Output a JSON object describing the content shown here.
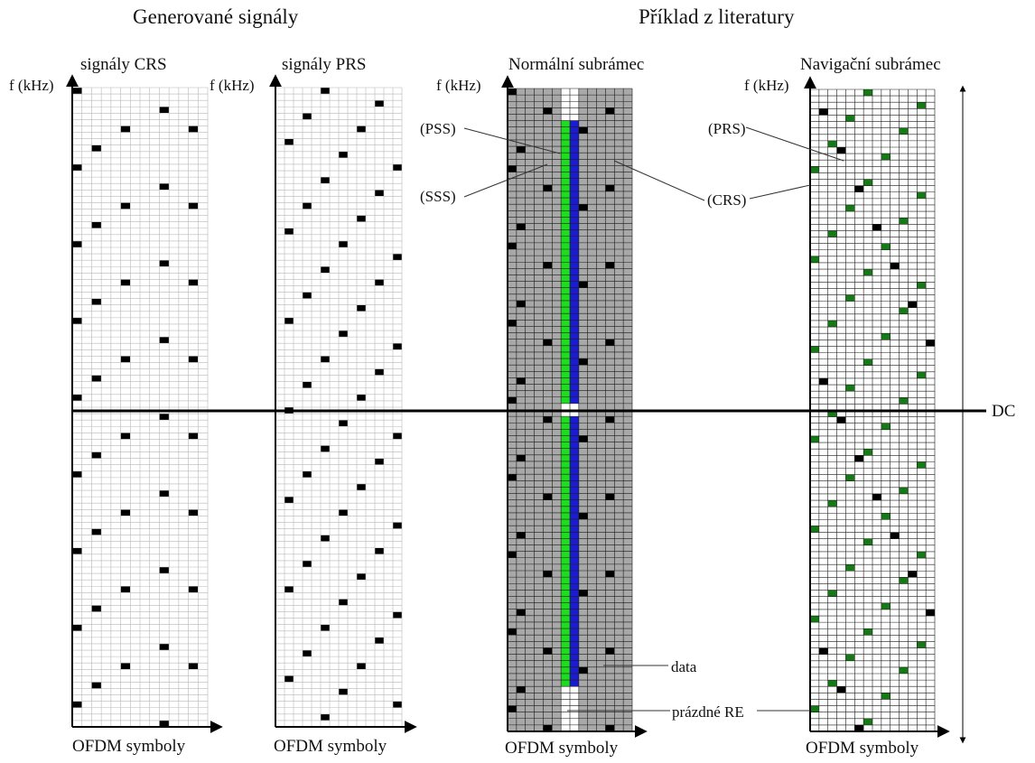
{
  "headings": {
    "generated": "Generované signály",
    "literature": "Příklad z literatury"
  },
  "grids": [
    {
      "id": "crs",
      "title": "signály CRS",
      "axis_f": "f (kHz)",
      "axis_t": "OFDM symboly",
      "cols": 14,
      "rows": 100,
      "background": "#ffffff",
      "line_color": "#b8b8b8"
    },
    {
      "id": "prs",
      "title": "signály PRS",
      "axis_f": "f (kHz)",
      "axis_t": "OFDM symboly",
      "cols": 14,
      "rows": 100,
      "background": "#ffffff",
      "line_color": "#b8b8b8"
    },
    {
      "id": "normal",
      "title": "Normální subrámec",
      "axis_f": "f (kHz)",
      "axis_t": "OFDM symboly",
      "cols": 14,
      "rows": 100,
      "background": "#a8a8a8",
      "line_color": "#1a1a1a"
    },
    {
      "id": "nav",
      "title": "Navigační subrámec",
      "axis_f": "f (kHz)",
      "axis_t": "OFDM symboly",
      "cols": 14,
      "rows": 100,
      "background": "#ffffff",
      "line_color": "#1a1a1a"
    }
  ],
  "annotations": {
    "pss": "(PSS)",
    "sss": "(SSS)",
    "crs": "(CRS)",
    "prs": "(PRS)",
    "data": "data",
    "empty": "prázdné RE",
    "dc": "DC"
  },
  "colors": {
    "crs_marker": "#000000",
    "prs_marker": "#000000",
    "nav_prs_marker": "#157a15",
    "pss": "#1c1ccf",
    "sss": "#1edc1e",
    "empty_re": "#ffffff",
    "dc_line": "#000000"
  }
}
